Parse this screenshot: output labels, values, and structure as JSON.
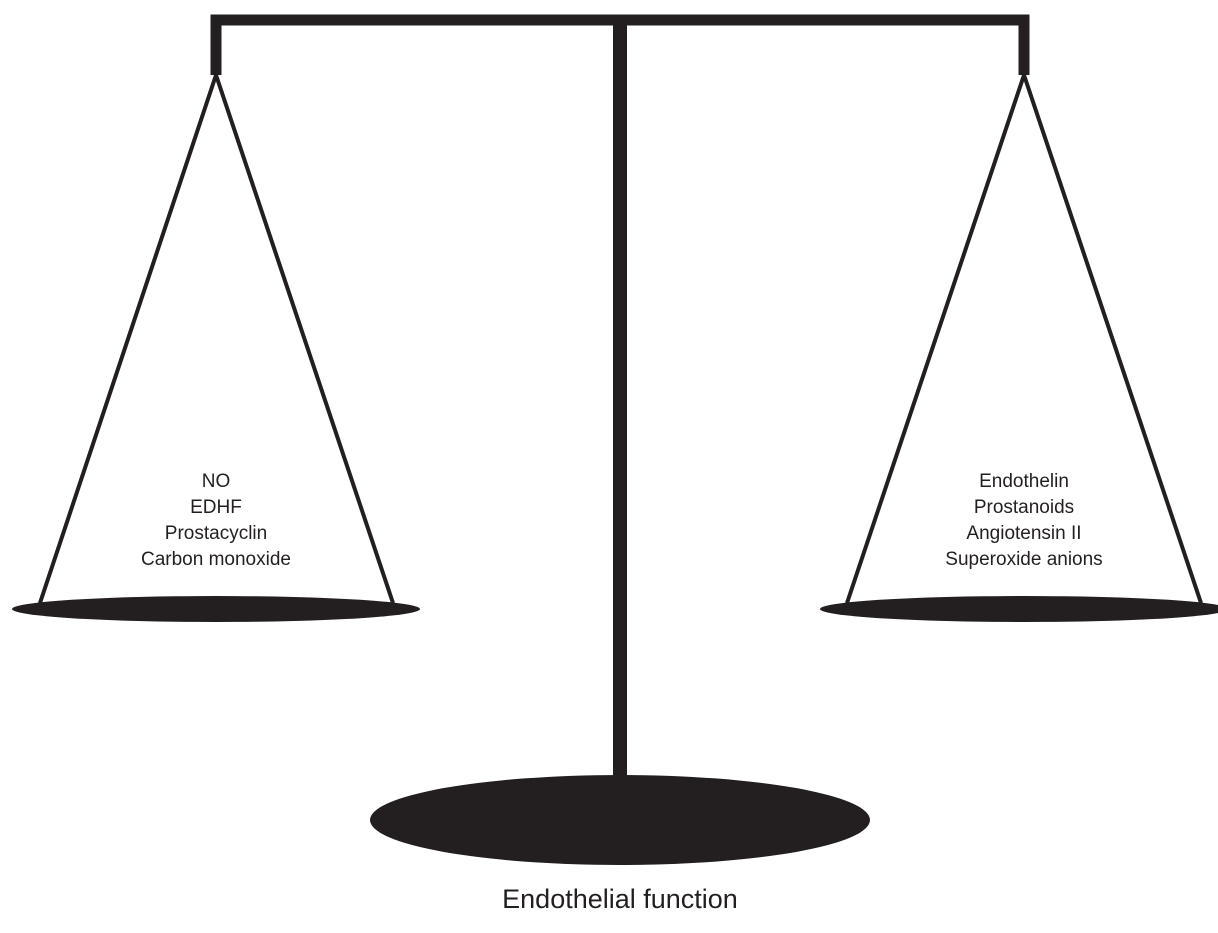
{
  "left_pan": {
    "items": [
      "NO",
      "EDHF",
      "Prostacyclin",
      "Carbon monoxide"
    ]
  },
  "right_pan": {
    "items": [
      "Endothelin",
      "Prostanoids",
      "Angiotensin II",
      "Superoxide anions"
    ]
  },
  "caption": "Endothelial function"
}
